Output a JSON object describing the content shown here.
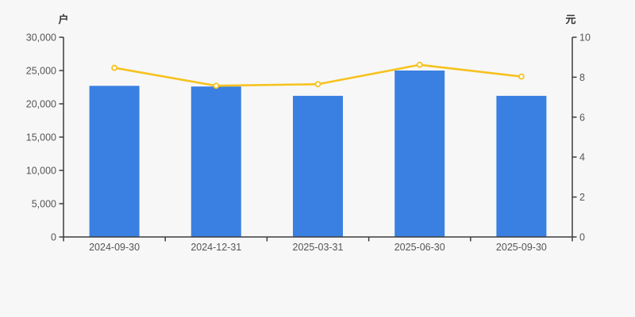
{
  "units": {
    "left": "户",
    "right": "元"
  },
  "colors": {
    "background": "#f7f7f7",
    "bar": "#3a80e2",
    "line": "#f6c21e",
    "marker_fill": "#ffffff",
    "axis": "#3d3d3d",
    "tick_label": "#555555",
    "unit_label": "#333333"
  },
  "chart_data": {
    "type": "bar",
    "categories": [
      "2024-09-30",
      "2024-12-31",
      "2025-03-31",
      "2025-06-30",
      "2025-09-30"
    ],
    "series": [
      {
        "name": "户",
        "type": "bar",
        "axis": "left",
        "values": [
          22700,
          22600,
          21200,
          25000,
          21200
        ]
      },
      {
        "name": "元",
        "type": "line",
        "axis": "right",
        "values": [
          8.47,
          7.57,
          7.65,
          8.62,
          8.03
        ]
      }
    ],
    "left_axis": {
      "unit": "户",
      "min": 0,
      "max": 30000,
      "step": 5000,
      "tick_labels": [
        "0",
        "5,000",
        "10,000",
        "15,000",
        "20,000",
        "25,000",
        "30,000"
      ]
    },
    "right_axis": {
      "unit": "元",
      "min": 0,
      "max": 10,
      "step": 2,
      "tick_labels": [
        "0",
        "2",
        "4",
        "6",
        "8",
        "10"
      ]
    },
    "title": "",
    "grid": false,
    "legend": false
  }
}
